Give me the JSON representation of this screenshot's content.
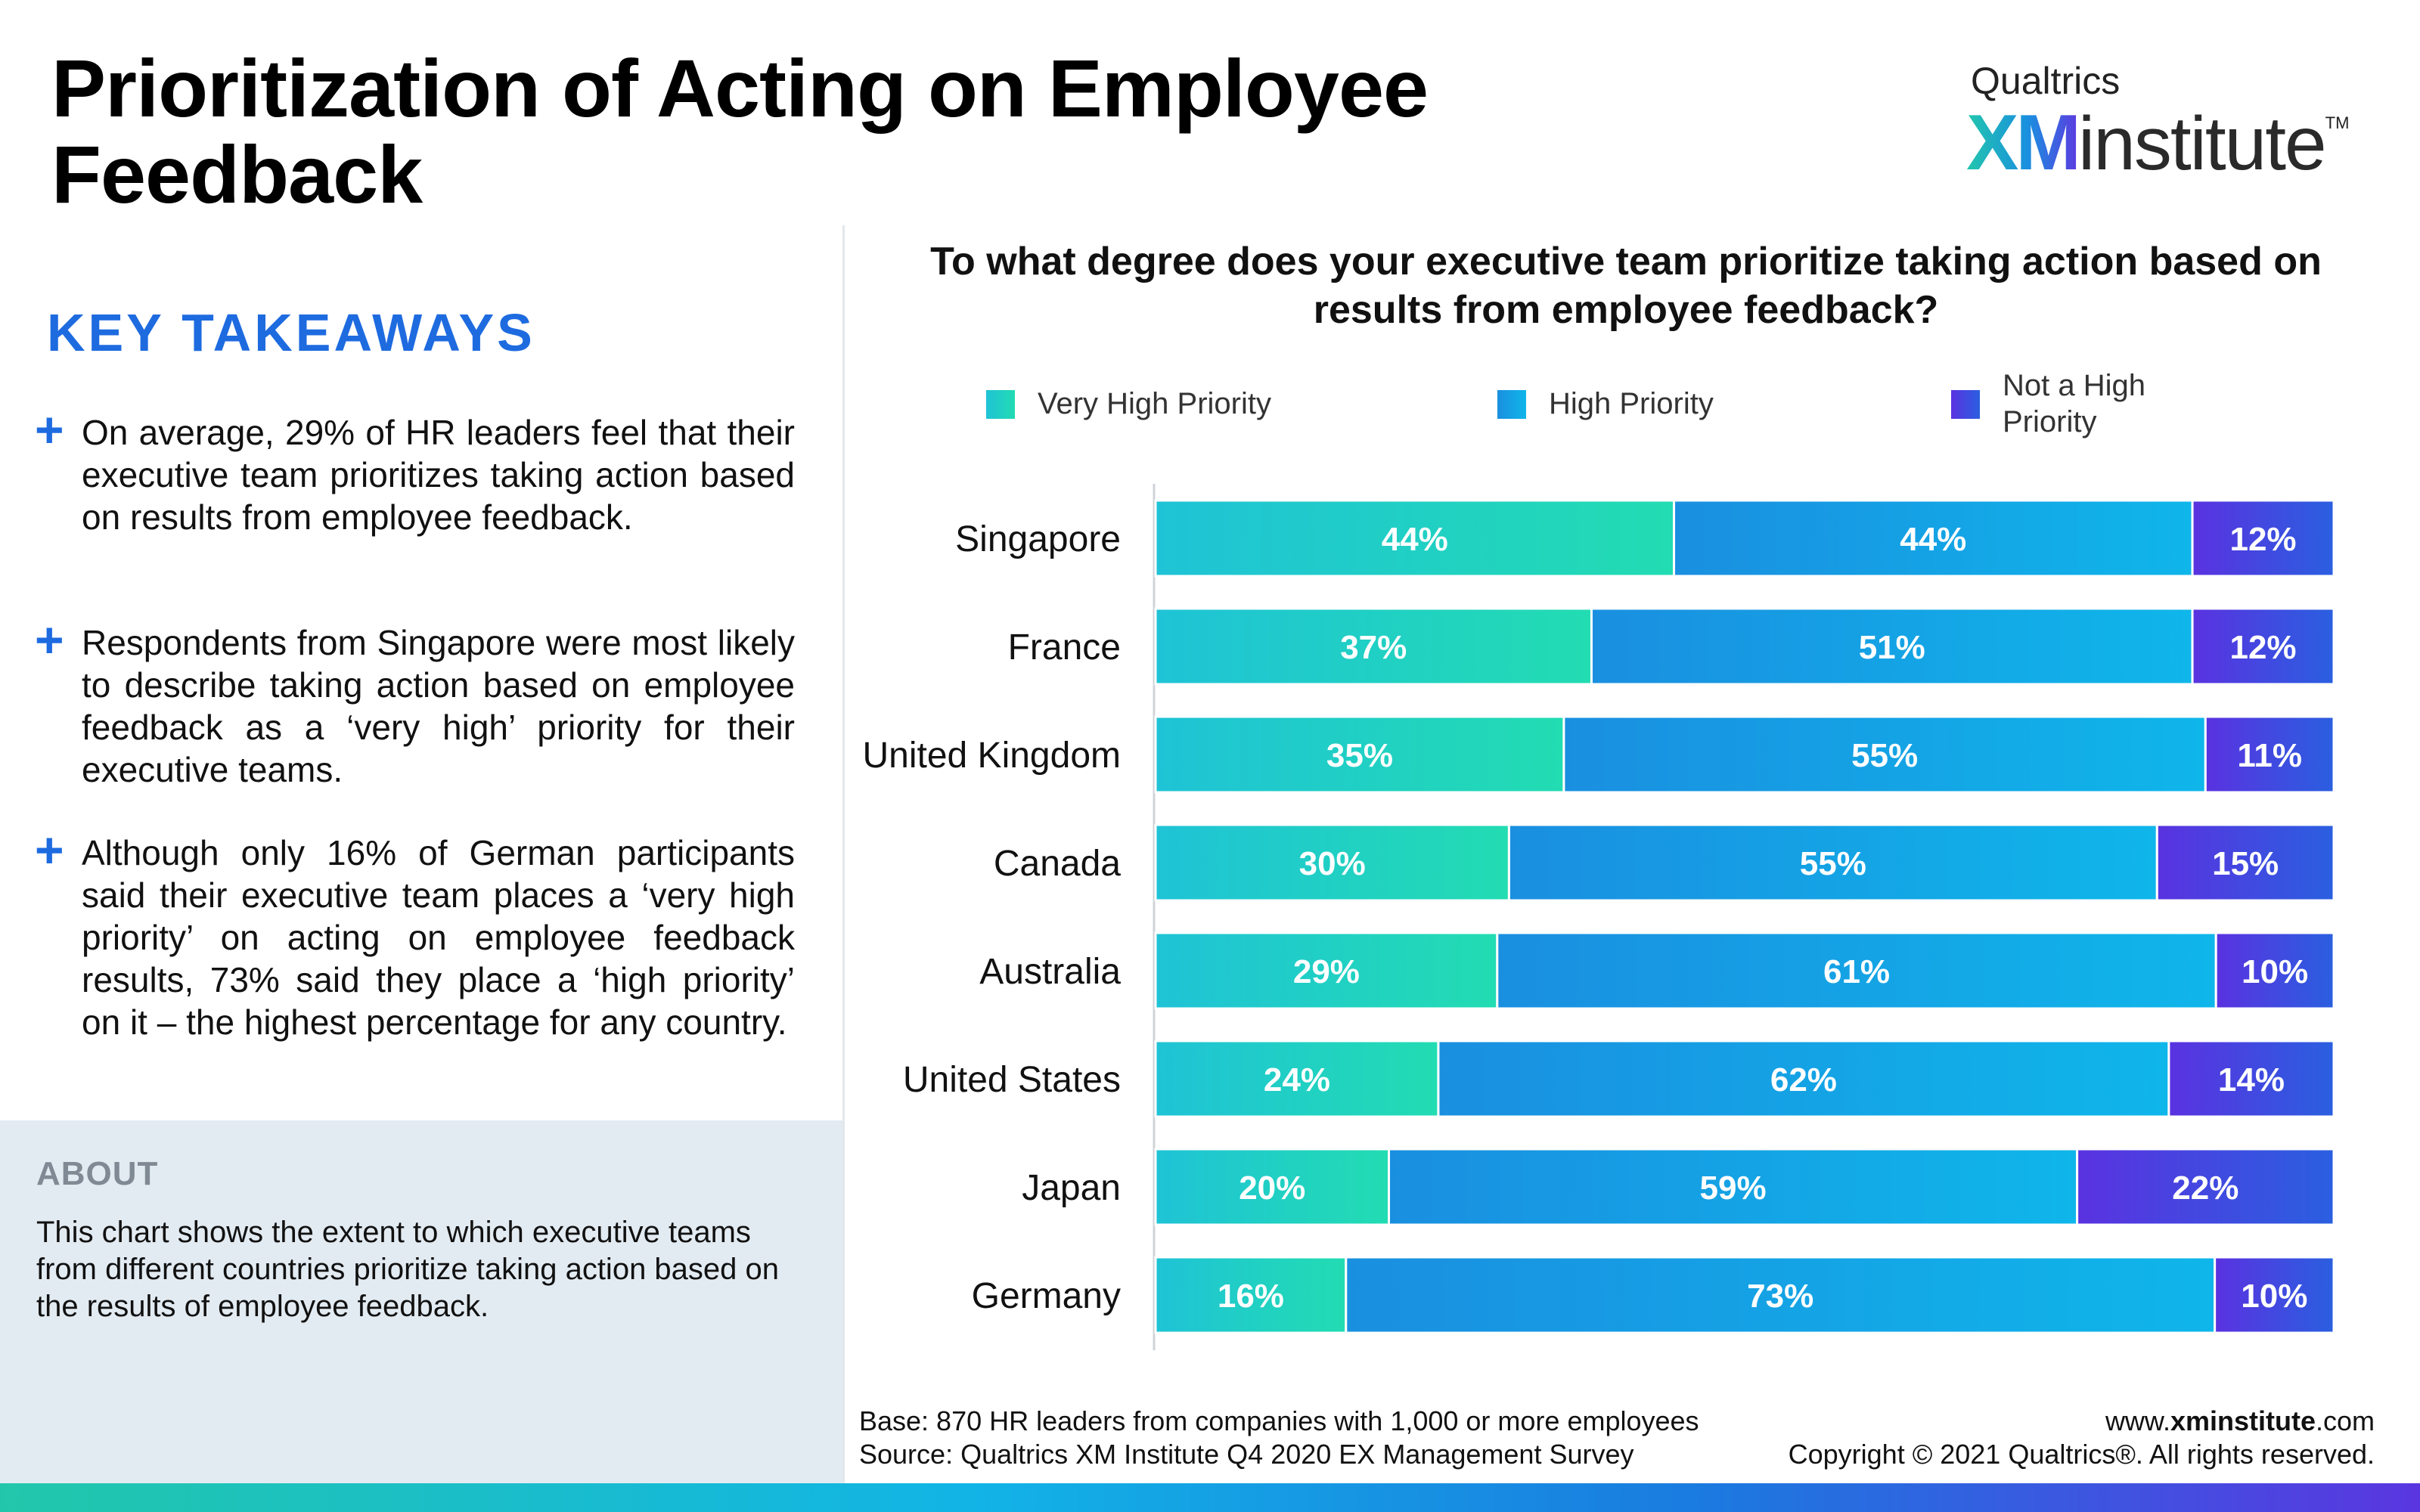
{
  "header": {
    "title": "Prioritization of Acting on Employee Feedback",
    "logo": {
      "brand": "Qualtrics",
      "xm": "XM",
      "institute": "institute",
      "tm": "TM"
    }
  },
  "takeaways": {
    "heading": "KEY TAKEAWAYS",
    "items": [
      "On average, 29% of HR leaders feel that their executive team prioritizes taking action based on results from employee feedback.",
      "Respondents from Singapore were most likely to describe taking action based on employee feedback as a ‘very high’ priority for their executive teams.",
      "Although only 16% of German participants said their executive team places a ‘very high priority’ on acting on employee feedback results, 73% said they place a ‘high priority’ on it – the highest percentage for any country."
    ]
  },
  "about": {
    "heading": "ABOUT",
    "text": "This chart shows the extent to which executive teams from different countries prioritize taking action based on the results of employee feedback."
  },
  "footer": {
    "base": "Base: 870 HR leaders from companies with 1,000 or more employees",
    "source": "Source: Qualtrics XM Institute Q4 2020  EX Management Survey",
    "website_prefix": "www.",
    "website_bold": "xminstitute",
    "website_suffix": ".com",
    "copyright": "Copyright © 2021 Qualtrics®. All rights reserved."
  },
  "colors": {
    "very_high": [
      "#1fc3d6",
      "#22dcb2"
    ],
    "high": [
      "#1a8fe0",
      "#0fb6ea"
    ],
    "not_high": [
      "#5a32e0",
      "#2a5fe0"
    ],
    "heading_blue": "#1e6be0"
  },
  "chart_data": {
    "type": "bar",
    "orientation": "horizontal",
    "stacked": true,
    "title": "To what degree does your executive team prioritize taking action based on results from employee feedback?",
    "categories": [
      "Singapore",
      "France",
      "United Kingdom",
      "Canada",
      "Australia",
      "United States",
      "Japan",
      "Germany"
    ],
    "series": [
      {
        "name": "Very High Priority",
        "values": [
          44,
          37,
          35,
          30,
          29,
          24,
          20,
          16
        ]
      },
      {
        "name": "High Priority",
        "values": [
          44,
          51,
          55,
          55,
          61,
          62,
          59,
          73
        ]
      },
      {
        "name": "Not a High Priority",
        "values": [
          12,
          12,
          11,
          15,
          10,
          14,
          22,
          10
        ]
      }
    ],
    "value_suffix": "%",
    "legend_position": "top",
    "grid": false
  }
}
